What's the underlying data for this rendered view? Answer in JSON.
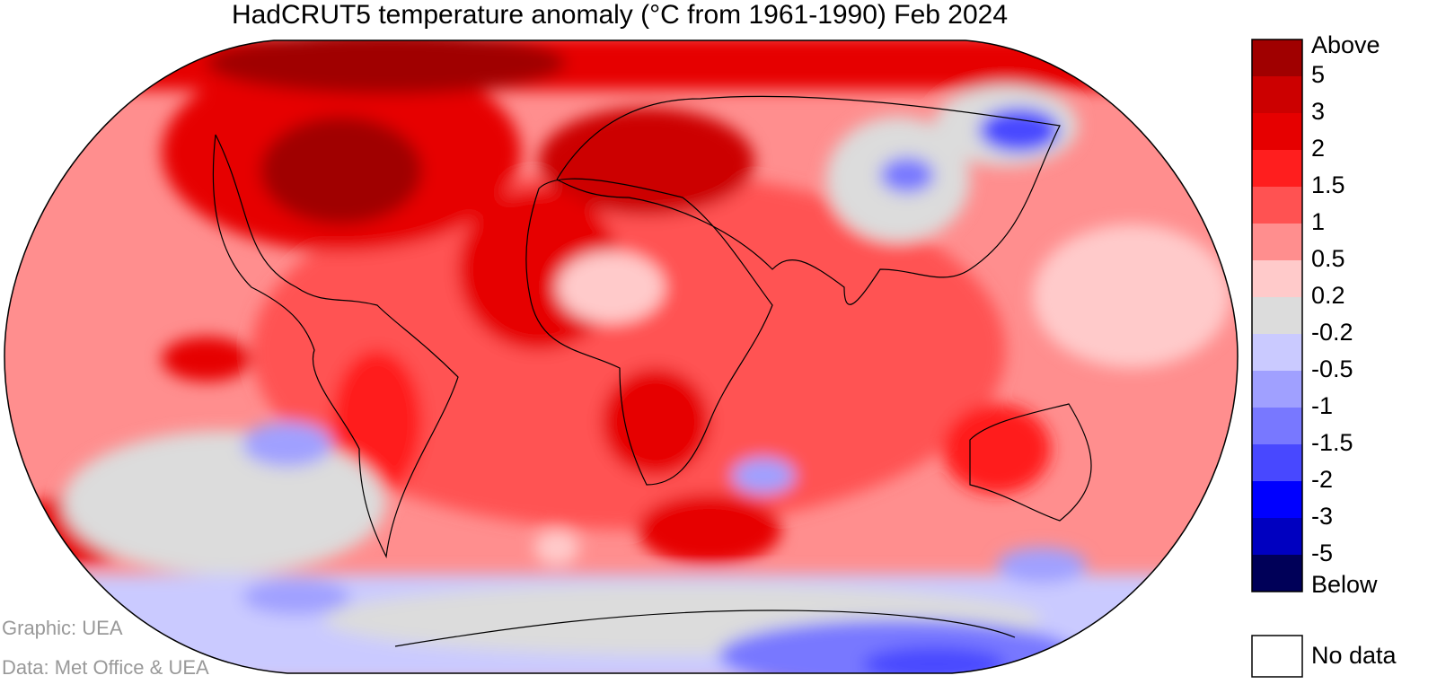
{
  "title": "HadCRUT5 temperature anomaly (°C from 1961-1990) Feb 2024",
  "legend": {
    "colors": [
      "#a00000",
      "#cc0000",
      "#e60000",
      "#ff1e1e",
      "#ff5252",
      "#ff8e8e",
      "#ffcaca",
      "#dcdcdc",
      "#cacaff",
      "#a0a0ff",
      "#7878ff",
      "#4848ff",
      "#0000ff",
      "#0000c0",
      "#000058"
    ],
    "labels": [
      "Above",
      5,
      3,
      2,
      1.5,
      1,
      0.5,
      0.2,
      -0.2,
      -0.5,
      -1,
      -1.5,
      -2,
      -3,
      -5,
      "Below"
    ],
    "no_data": "No data"
  },
  "credits": {
    "graphic": "Graphic: UEA",
    "data": "Data: Met Office & UEA"
  }
}
